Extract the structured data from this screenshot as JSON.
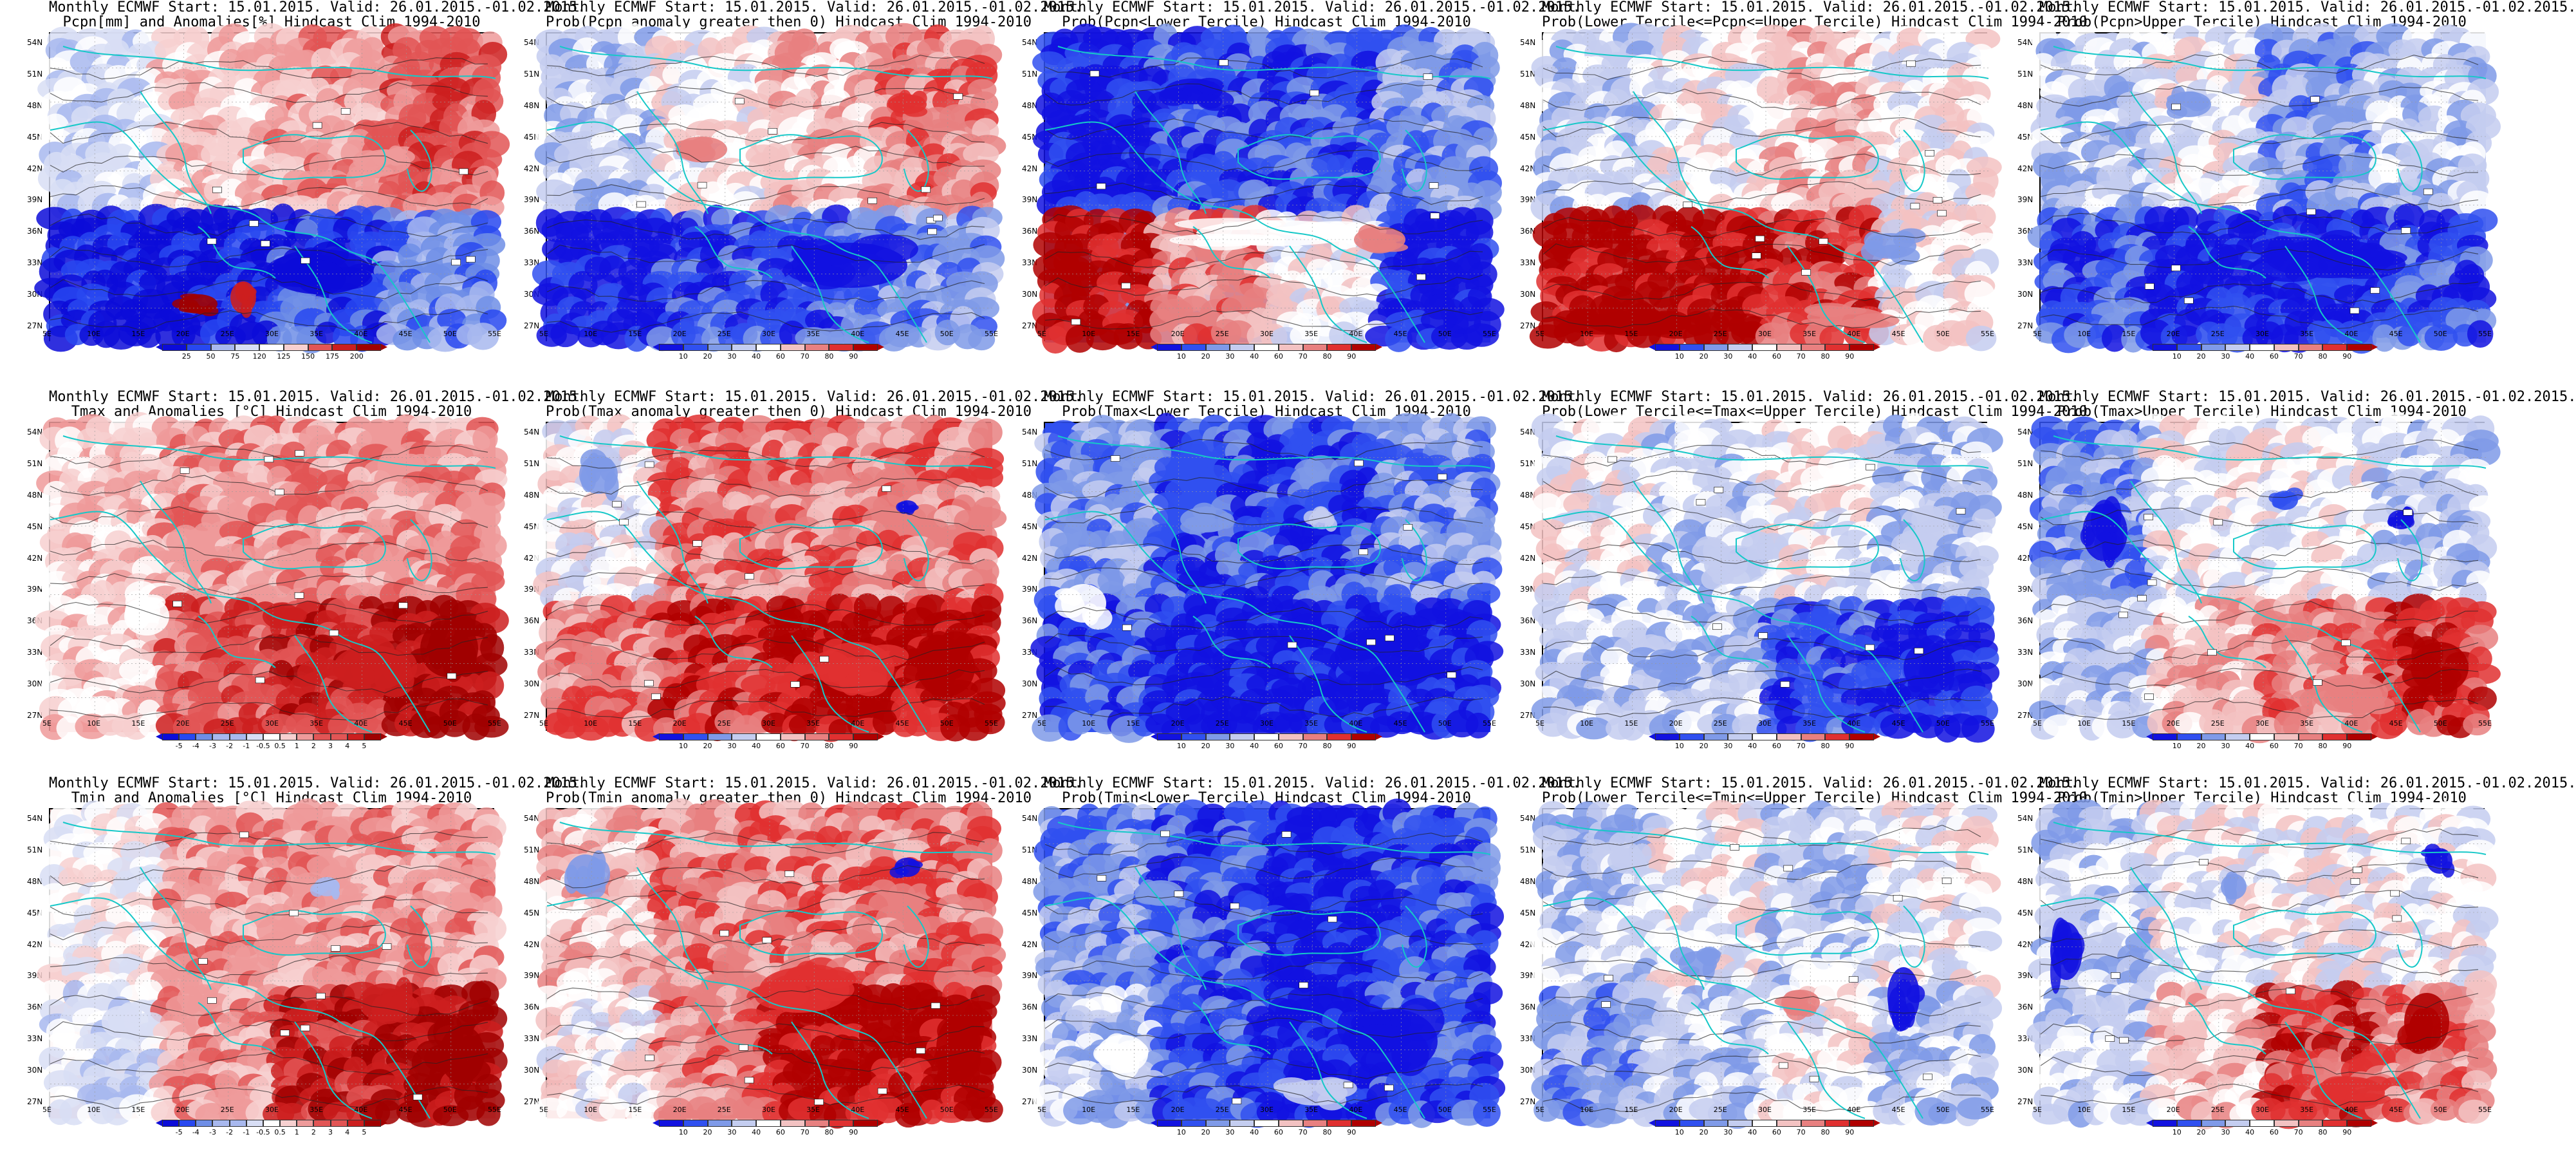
{
  "lon_ticks": [
    "5E",
    "10E",
    "15E",
    "20E",
    "25E",
    "30E",
    "35E",
    "40E",
    "45E",
    "50E",
    "55E"
  ],
  "lat_ticks": [
    "54N",
    "51N",
    "48N",
    "45N",
    "42N",
    "39N",
    "36N",
    "33N",
    "30N",
    "27N"
  ],
  "colors": {
    "prob": [
      "#1212e0",
      "#3050f0",
      "#7f9ae8",
      "#c4cdf0",
      "#ffffff",
      "#f3c2c2",
      "#e88080",
      "#e03030",
      "#b00000"
    ],
    "anom": [
      "#0c0cd8",
      "#2848f0",
      "#6f8ee6",
      "#a8b8ee",
      "#d8def5",
      "#ffffff",
      "#f7d0d0",
      "#ee9a9a",
      "#e25555",
      "#cc1f1f",
      "#a00000"
    ]
  },
  "colorbars": {
    "pcpn": [
      "25",
      "50",
      "75",
      "120",
      "125",
      "150",
      "175",
      "200"
    ],
    "prob": [
      "10",
      "20",
      "30",
      "40",
      "60",
      "70",
      "80",
      "90"
    ],
    "temp": [
      "-5",
      "-4",
      "-3",
      "-2",
      "-1",
      "-0.5",
      "0.5",
      "1",
      "2",
      "3",
      "4",
      "5"
    ]
  },
  "panels": [
    {
      "line1": "Monthly ECMWF Start: 15.01.2015. Valid: 26.01.2015.-01.02.2015.",
      "line2": "Pcpn[mm] and Anomalies[%] Hindcast Clim 1994-2010",
      "field": "pcpn_anom",
      "colorbar": "pcpn"
    },
    {
      "line1": "Monthly ECMWF Start: 15.01.2015. Valid: 26.01.2015.-01.02.2015.",
      "line2": "Prob(Pcpn anomaly greater then 0) Hindcast Clim 1994-2010",
      "field": "pcpn_prob",
      "colorbar": "prob"
    },
    {
      "line1": "Monthly ECMWF Start: 15.01.2015. Valid: 26.01.2015.-01.02.2015.",
      "line2": "Prob(Pcpn<Lower Tercile) Hindcast Clim 1994-2010",
      "field": "pcpn_lower",
      "colorbar": "prob"
    },
    {
      "line1": "Monthly ECMWF Start: 15.01.2015. Valid: 26.01.2015.-01.02.2015.",
      "line2": "Prob(Lower Tercile<=Pcpn<=Upper Tercile) Hindcast Clim 1994-2010",
      "field": "pcpn_mid",
      "colorbar": "prob"
    },
    {
      "line1": "Monthly ECMWF Start: 15.01.2015. Valid: 26.01.2015.-01.02.2015.",
      "line2": "Prob(Pcpn>Upper Tercile) Hindcast Clim 1994-2010",
      "field": "pcpn_upper",
      "colorbar": "prob"
    },
    {
      "line1": "Monthly ECMWF Start: 15.01.2015. Valid: 26.01.2015.-01.02.2015.",
      "line2": "Tmax and Anomalies [°C] Hindcast Clim 1994-2010",
      "field": "tmax_anom",
      "colorbar": "temp"
    },
    {
      "line1": "Monthly ECMWF Start: 15.01.2015. Valid: 26.01.2015.-01.02.2015.",
      "line2": "Prob(Tmax anomaly greater then 0) Hindcast Clim 1994-2010",
      "field": "tmax_prob",
      "colorbar": "prob"
    },
    {
      "line1": "Monthly ECMWF Start: 15.01.2015. Valid: 26.01.2015.-01.02.2015.",
      "line2": "Prob(Tmax<Lower Tercile) Hindcast Clim 1994-2010",
      "field": "tmax_lower",
      "colorbar": "prob"
    },
    {
      "line1": "Monthly ECMWF Start: 15.01.2015. Valid: 26.01.2015.-01.02.2015.",
      "line2": "Prob(Lower Tercile<=Tmax<=Upper Tercile) Hindcast Clim 1994-2010",
      "field": "tmax_mid",
      "colorbar": "prob"
    },
    {
      "line1": "Monthly ECMWF Start: 15.01.2015. Valid: 26.01.2015.-01.02.2015.",
      "line2": "Prob(Tmax>Upper Tercile) Hindcast Clim 1994-2010",
      "field": "tmax_upper",
      "colorbar": "prob"
    },
    {
      "line1": "Monthly ECMWF Start: 15.01.2015. Valid: 26.01.2015.-01.02.2015.",
      "line2": "Tmin and Anomalies [°C] Hindcast Clim 1994-2010",
      "field": "tmin_anom",
      "colorbar": "temp"
    },
    {
      "line1": "Monthly ECMWF Start: 15.01.2015. Valid: 26.01.2015.-01.02.2015.",
      "line2": "Prob(Tmin anomaly greater then 0) Hindcast Clim 1994-2010",
      "field": "tmin_prob",
      "colorbar": "prob"
    },
    {
      "line1": "Monthly ECMWF Start: 15.01.2015. Valid: 26.01.2015.-01.02.2015.",
      "line2": "Prob(Tmin<Lower Tercile) Hindcast Clim 1994-2010",
      "field": "tmin_lower",
      "colorbar": "prob"
    },
    {
      "line1": "Monthly ECMWF Start: 15.01.2015. Valid: 26.01.2015.-01.02.2015.",
      "line2": "Prob(Lower Tercile<=Tmin<=Upper Tercile) Hindcast Clim 1994-2010",
      "field": "tmin_mid",
      "colorbar": "prob"
    },
    {
      "line1": "Monthly ECMWF Start: 15.01.2015. Valid: 26.01.2015.-01.02.2015.",
      "line2": "Prob(Tmin>Upper Tercile) Hindcast Clim 1994-2010",
      "field": "tmin_upper",
      "colorbar": "prob"
    }
  ]
}
